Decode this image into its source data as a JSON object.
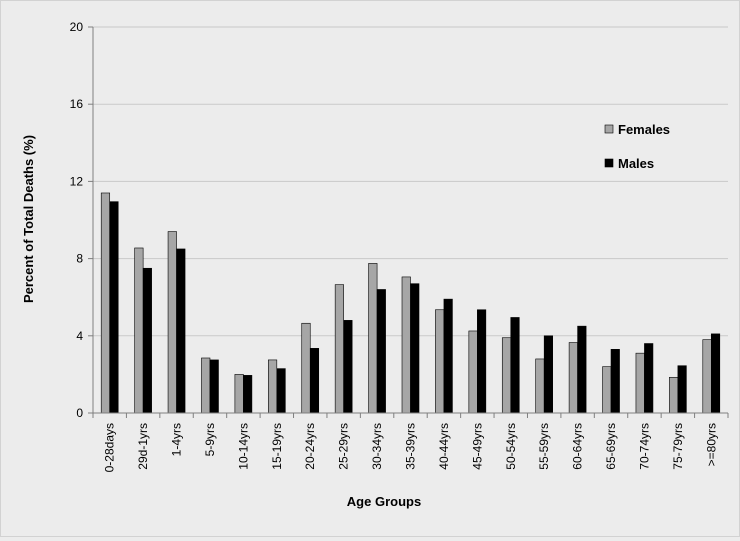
{
  "chart_data": {
    "type": "bar",
    "xlabel": "Age Groups",
    "ylabel": "Percent of Total Deaths (%)",
    "ylim": [
      0,
      20
    ],
    "yticks": [
      0,
      4,
      8,
      12,
      16,
      20
    ],
    "grid": true,
    "legend_position": "right",
    "categories": [
      "0-28days",
      "29d-1yrs",
      "1-4yrs",
      "5-9yrs",
      "10-14yrs",
      "15-19yrs",
      "20-24yrs",
      "25-29yrs",
      "30-34yrs",
      "35-39yrs",
      "40-44yrs",
      "45-49yrs",
      "50-54yrs",
      "55-59yrs",
      "60-64yrs",
      "65-69yrs",
      "70-74yrs",
      "75-79yrs",
      ">=80yrs"
    ],
    "series": [
      {
        "name": "Females",
        "color": "#a6a6a6",
        "values": [
          11.4,
          8.55,
          9.4,
          2.85,
          2.0,
          2.75,
          4.65,
          6.65,
          7.75,
          7.05,
          5.35,
          4.25,
          3.9,
          2.8,
          3.65,
          2.4,
          3.1,
          1.85,
          3.8
        ]
      },
      {
        "name": "Males",
        "color": "#000000",
        "values": [
          10.95,
          7.5,
          8.5,
          2.75,
          1.95,
          2.3,
          3.35,
          4.8,
          6.4,
          6.7,
          5.9,
          5.35,
          4.95,
          4.0,
          4.5,
          3.3,
          3.6,
          2.45,
          4.1
        ]
      }
    ]
  }
}
